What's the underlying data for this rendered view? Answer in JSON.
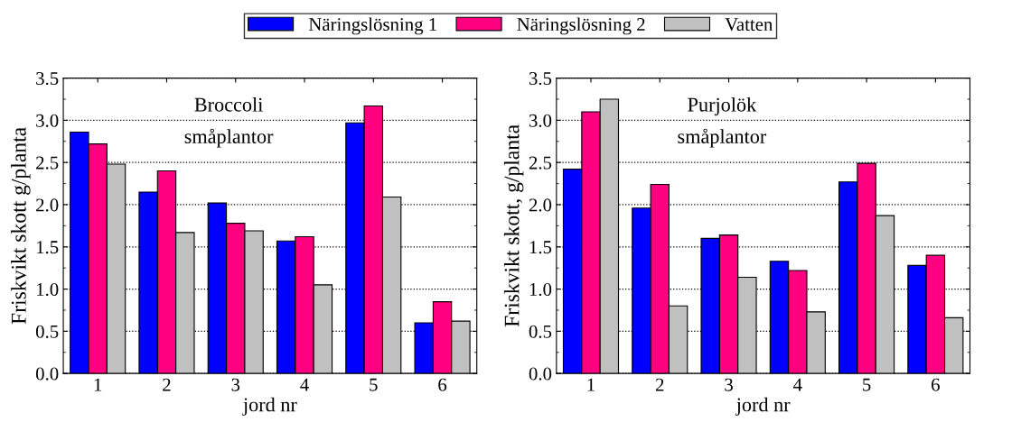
{
  "chart_data": [
    {
      "type": "bar",
      "xlabel": "jord nr",
      "ylabel": "Friskvikt skott g/planta",
      "categories": [
        "1",
        "2",
        "3",
        "4",
        "5",
        "6"
      ],
      "series": [
        {
          "name": "Näringslösning 1",
          "color": "#0000ff",
          "values": [
            2.86,
            2.15,
            2.02,
            1.57,
            2.97,
            0.6
          ]
        },
        {
          "name": "Näringslösning 2",
          "color": "#ff0080",
          "values": [
            2.72,
            2.4,
            1.78,
            1.62,
            3.17,
            0.85
          ]
        },
        {
          "name": "Vatten",
          "color": "#c0c0c0",
          "values": [
            2.48,
            1.67,
            1.69,
            1.05,
            2.09,
            0.62
          ]
        }
      ],
      "ylim": [
        0,
        3.5
      ],
      "yticks": [
        {
          "value": 0,
          "label": "0.0"
        },
        {
          "value": 0.5,
          "label": "0.5"
        },
        {
          "value": 1,
          "label": "1.0"
        },
        {
          "value": 1.5,
          "label": "1.5"
        },
        {
          "value": 2,
          "label": "2.0"
        },
        {
          "value": 2.5,
          "label": "2.5"
        },
        {
          "value": 3,
          "label": "3.0"
        },
        {
          "value": 3.5,
          "label": "3.5"
        }
      ],
      "annotations": [
        "Broccoli\nsmåplantor"
      ],
      "grid": "y",
      "legend": "top"
    },
    {
      "type": "bar",
      "xlabel": "jord nr",
      "ylabel": "Friskvikt skott, g/planta",
      "categories": [
        "1",
        "2",
        "3",
        "4",
        "5",
        "6"
      ],
      "series": [
        {
          "color": "#0000ff",
          "values": [
            2.42,
            1.96,
            1.6,
            1.33,
            2.27,
            1.28
          ]
        },
        {
          "color": "#ff0080",
          "values": [
            3.1,
            2.24,
            1.64,
            1.22,
            2.49,
            1.4
          ]
        },
        {
          "color": "#c0c0c0",
          "values": [
            3.25,
            0.8,
            1.14,
            0.73,
            1.87,
            0.66
          ]
        }
      ],
      "ylim": [
        0,
        3.5
      ],
      "yticks": [
        {
          "value": 0,
          "label": "0.0"
        },
        {
          "value": 0.5,
          "label": "0.5"
        },
        {
          "value": 1,
          "label": "1.0"
        },
        {
          "value": 1.5,
          "label": "1.5"
        },
        {
          "value": 2,
          "label": "2.0"
        },
        {
          "value": 2.5,
          "label": "2.5"
        },
        {
          "value": 3,
          "label": "3.0"
        },
        {
          "value": 3.5,
          "label": "3.5"
        }
      ],
      "annotations": [
        "Purjolök\nsmåplantor"
      ],
      "grid": "y"
    }
  ]
}
